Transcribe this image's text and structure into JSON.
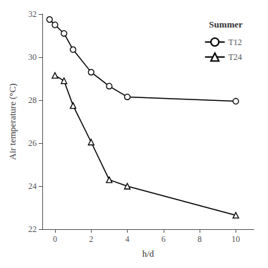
{
  "chart_data": {
    "type": "line",
    "xlabel": "h/d",
    "ylabel": "Air temperature (°C)",
    "legend_title": "Summer",
    "legend": "upper right",
    "grid": false,
    "xlim": [
      -0.7,
      11.0
    ],
    "ylim": [
      22,
      32
    ],
    "xticks": [
      0,
      2,
      4,
      6,
      8,
      10
    ],
    "yticks": [
      22,
      24,
      26,
      28,
      30,
      32
    ],
    "series": [
      {
        "name": "T12",
        "color": "black",
        "marker": "circle",
        "x": [
          -0.3,
          0.0,
          0.5,
          1.0,
          2.0,
          3.0,
          4.0,
          10.0
        ],
        "values": [
          31.75,
          31.5,
          31.1,
          30.35,
          29.3,
          28.65,
          28.15,
          27.95
        ]
      },
      {
        "name": "T24",
        "color": "black",
        "marker": "triangle",
        "x": [
          0.0,
          0.5,
          1.0,
          2.0,
          3.0,
          4.0,
          10.0
        ],
        "values": [
          29.15,
          28.9,
          27.75,
          26.05,
          24.3,
          24.0,
          22.65
        ]
      }
    ]
  }
}
